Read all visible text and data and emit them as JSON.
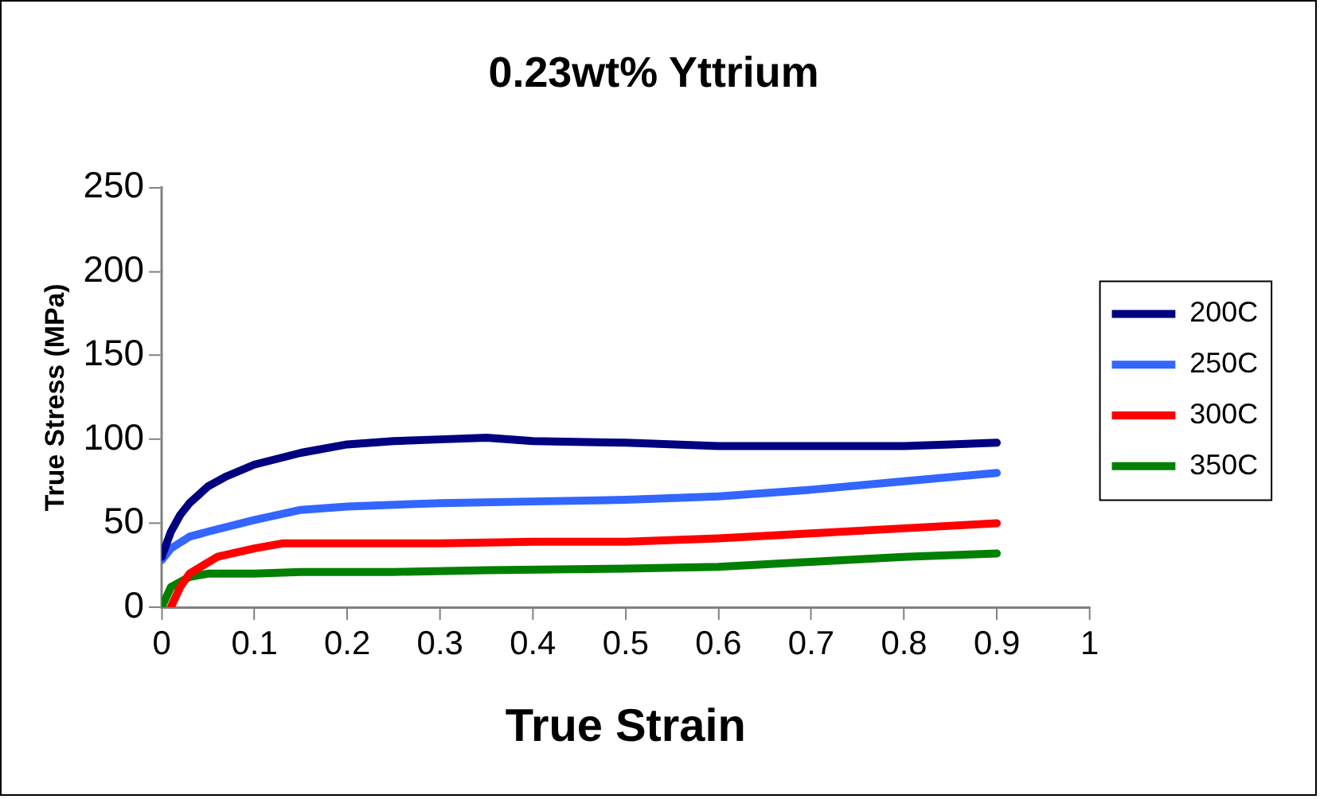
{
  "chart_data": {
    "type": "line",
    "title": "0.23wt% Yttrium",
    "xlabel": "True Strain",
    "ylabel": "True Stress (MPa)",
    "xlim": [
      0,
      1
    ],
    "xticks": [
      0,
      0.1,
      0.2,
      0.3,
      0.4,
      0.5,
      0.6,
      0.7,
      0.8,
      0.9,
      1
    ],
    "ylim": [
      0,
      250
    ],
    "yticks": [
      0,
      50,
      100,
      150,
      200,
      250
    ],
    "grid": false,
    "legend": "right",
    "marker": "none",
    "line_style": "solid",
    "series": [
      {
        "name": "200C",
        "color": "#000080",
        "x": [
          0,
          0.01,
          0.02,
          0.03,
          0.05,
          0.07,
          0.1,
          0.15,
          0.2,
          0.25,
          0.3,
          0.35,
          0.4,
          0.5,
          0.6,
          0.7,
          0.8,
          0.85,
          0.9
        ],
        "values": [
          30,
          45,
          55,
          62,
          72,
          78,
          85,
          92,
          97,
          99,
          100,
          101,
          99,
          98,
          96,
          96,
          96,
          97,
          98
        ]
      },
      {
        "name": "250C",
        "color": "#3366ff",
        "x": [
          0,
          0.01,
          0.03,
          0.05,
          0.1,
          0.15,
          0.2,
          0.3,
          0.4,
          0.5,
          0.6,
          0.7,
          0.8,
          0.9
        ],
        "values": [
          28,
          35,
          42,
          45,
          52,
          58,
          60,
          62,
          63,
          64,
          66,
          70,
          75,
          80
        ]
      },
      {
        "name": "300C",
        "color": "#ff0000",
        "x": [
          0.01,
          0.02,
          0.03,
          0.06,
          0.1,
          0.13,
          0.2,
          0.3,
          0.4,
          0.5,
          0.6,
          0.7,
          0.8,
          0.9
        ],
        "values": [
          0,
          12,
          20,
          30,
          35,
          38,
          38,
          38,
          39,
          39,
          41,
          44,
          47,
          50
        ]
      },
      {
        "name": "350C",
        "color": "#008000",
        "x": [
          0,
          0.01,
          0.03,
          0.05,
          0.1,
          0.15,
          0.25,
          0.35,
          0.5,
          0.6,
          0.7,
          0.8,
          0.9
        ],
        "values": [
          0,
          12,
          18,
          20,
          20,
          21,
          21,
          22,
          23,
          24,
          27,
          30,
          32
        ]
      }
    ]
  }
}
